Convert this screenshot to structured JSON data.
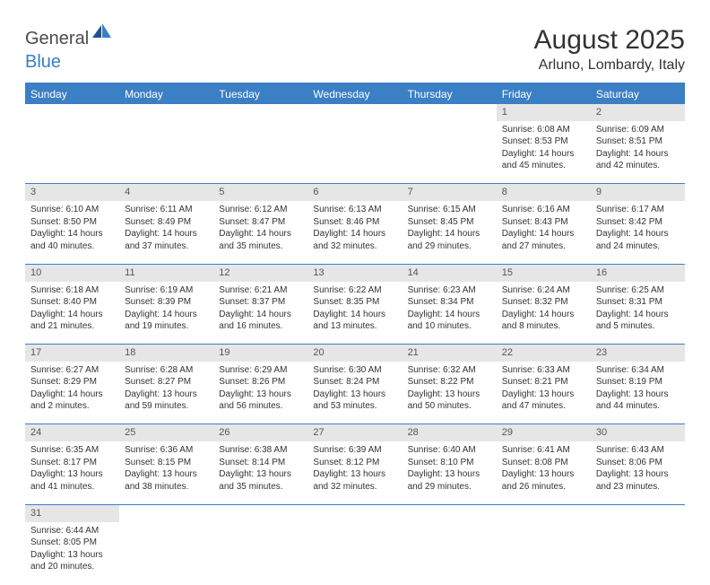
{
  "header": {
    "logo_part1": "General",
    "logo_part2": "Blue",
    "month_title": "August 2025",
    "location": "Arluno, Lombardy, Italy"
  },
  "colors": {
    "brand_blue": "#3b7fc4",
    "header_bg": "#3b7fc4",
    "daynum_bg": "#e6e6e6",
    "text": "#333333",
    "border": "#3b7fc4"
  },
  "weekdays": [
    "Sunday",
    "Monday",
    "Tuesday",
    "Wednesday",
    "Thursday",
    "Friday",
    "Saturday"
  ],
  "weeks": [
    {
      "nums": [
        "",
        "",
        "",
        "",
        "",
        "1",
        "2"
      ],
      "cells": [
        null,
        null,
        null,
        null,
        null,
        {
          "sunrise": "6:08 AM",
          "sunset": "8:53 PM",
          "daylight": "14 hours and 45 minutes."
        },
        {
          "sunrise": "6:09 AM",
          "sunset": "8:51 PM",
          "daylight": "14 hours and 42 minutes."
        }
      ]
    },
    {
      "nums": [
        "3",
        "4",
        "5",
        "6",
        "7",
        "8",
        "9"
      ],
      "cells": [
        {
          "sunrise": "6:10 AM",
          "sunset": "8:50 PM",
          "daylight": "14 hours and 40 minutes."
        },
        {
          "sunrise": "6:11 AM",
          "sunset": "8:49 PM",
          "daylight": "14 hours and 37 minutes."
        },
        {
          "sunrise": "6:12 AM",
          "sunset": "8:47 PM",
          "daylight": "14 hours and 35 minutes."
        },
        {
          "sunrise": "6:13 AM",
          "sunset": "8:46 PM",
          "daylight": "14 hours and 32 minutes."
        },
        {
          "sunrise": "6:15 AM",
          "sunset": "8:45 PM",
          "daylight": "14 hours and 29 minutes."
        },
        {
          "sunrise": "6:16 AM",
          "sunset": "8:43 PM",
          "daylight": "14 hours and 27 minutes."
        },
        {
          "sunrise": "6:17 AM",
          "sunset": "8:42 PM",
          "daylight": "14 hours and 24 minutes."
        }
      ]
    },
    {
      "nums": [
        "10",
        "11",
        "12",
        "13",
        "14",
        "15",
        "16"
      ],
      "cells": [
        {
          "sunrise": "6:18 AM",
          "sunset": "8:40 PM",
          "daylight": "14 hours and 21 minutes."
        },
        {
          "sunrise": "6:19 AM",
          "sunset": "8:39 PM",
          "daylight": "14 hours and 19 minutes."
        },
        {
          "sunrise": "6:21 AM",
          "sunset": "8:37 PM",
          "daylight": "14 hours and 16 minutes."
        },
        {
          "sunrise": "6:22 AM",
          "sunset": "8:35 PM",
          "daylight": "14 hours and 13 minutes."
        },
        {
          "sunrise": "6:23 AM",
          "sunset": "8:34 PM",
          "daylight": "14 hours and 10 minutes."
        },
        {
          "sunrise": "6:24 AM",
          "sunset": "8:32 PM",
          "daylight": "14 hours and 8 minutes."
        },
        {
          "sunrise": "6:25 AM",
          "sunset": "8:31 PM",
          "daylight": "14 hours and 5 minutes."
        }
      ]
    },
    {
      "nums": [
        "17",
        "18",
        "19",
        "20",
        "21",
        "22",
        "23"
      ],
      "cells": [
        {
          "sunrise": "6:27 AM",
          "sunset": "8:29 PM",
          "daylight": "14 hours and 2 minutes."
        },
        {
          "sunrise": "6:28 AM",
          "sunset": "8:27 PM",
          "daylight": "13 hours and 59 minutes."
        },
        {
          "sunrise": "6:29 AM",
          "sunset": "8:26 PM",
          "daylight": "13 hours and 56 minutes."
        },
        {
          "sunrise": "6:30 AM",
          "sunset": "8:24 PM",
          "daylight": "13 hours and 53 minutes."
        },
        {
          "sunrise": "6:32 AM",
          "sunset": "8:22 PM",
          "daylight": "13 hours and 50 minutes."
        },
        {
          "sunrise": "6:33 AM",
          "sunset": "8:21 PM",
          "daylight": "13 hours and 47 minutes."
        },
        {
          "sunrise": "6:34 AM",
          "sunset": "8:19 PM",
          "daylight": "13 hours and 44 minutes."
        }
      ]
    },
    {
      "nums": [
        "24",
        "25",
        "26",
        "27",
        "28",
        "29",
        "30"
      ],
      "cells": [
        {
          "sunrise": "6:35 AM",
          "sunset": "8:17 PM",
          "daylight": "13 hours and 41 minutes."
        },
        {
          "sunrise": "6:36 AM",
          "sunset": "8:15 PM",
          "daylight": "13 hours and 38 minutes."
        },
        {
          "sunrise": "6:38 AM",
          "sunset": "8:14 PM",
          "daylight": "13 hours and 35 minutes."
        },
        {
          "sunrise": "6:39 AM",
          "sunset": "8:12 PM",
          "daylight": "13 hours and 32 minutes."
        },
        {
          "sunrise": "6:40 AM",
          "sunset": "8:10 PM",
          "daylight": "13 hours and 29 minutes."
        },
        {
          "sunrise": "6:41 AM",
          "sunset": "8:08 PM",
          "daylight": "13 hours and 26 minutes."
        },
        {
          "sunrise": "6:43 AM",
          "sunset": "8:06 PM",
          "daylight": "13 hours and 23 minutes."
        }
      ]
    },
    {
      "nums": [
        "31",
        "",
        "",
        "",
        "",
        "",
        ""
      ],
      "cells": [
        {
          "sunrise": "6:44 AM",
          "sunset": "8:05 PM",
          "daylight": "13 hours and 20 minutes."
        },
        null,
        null,
        null,
        null,
        null,
        null
      ]
    }
  ],
  "labels": {
    "sunrise": "Sunrise: ",
    "sunset": "Sunset: ",
    "daylight": "Daylight: "
  }
}
